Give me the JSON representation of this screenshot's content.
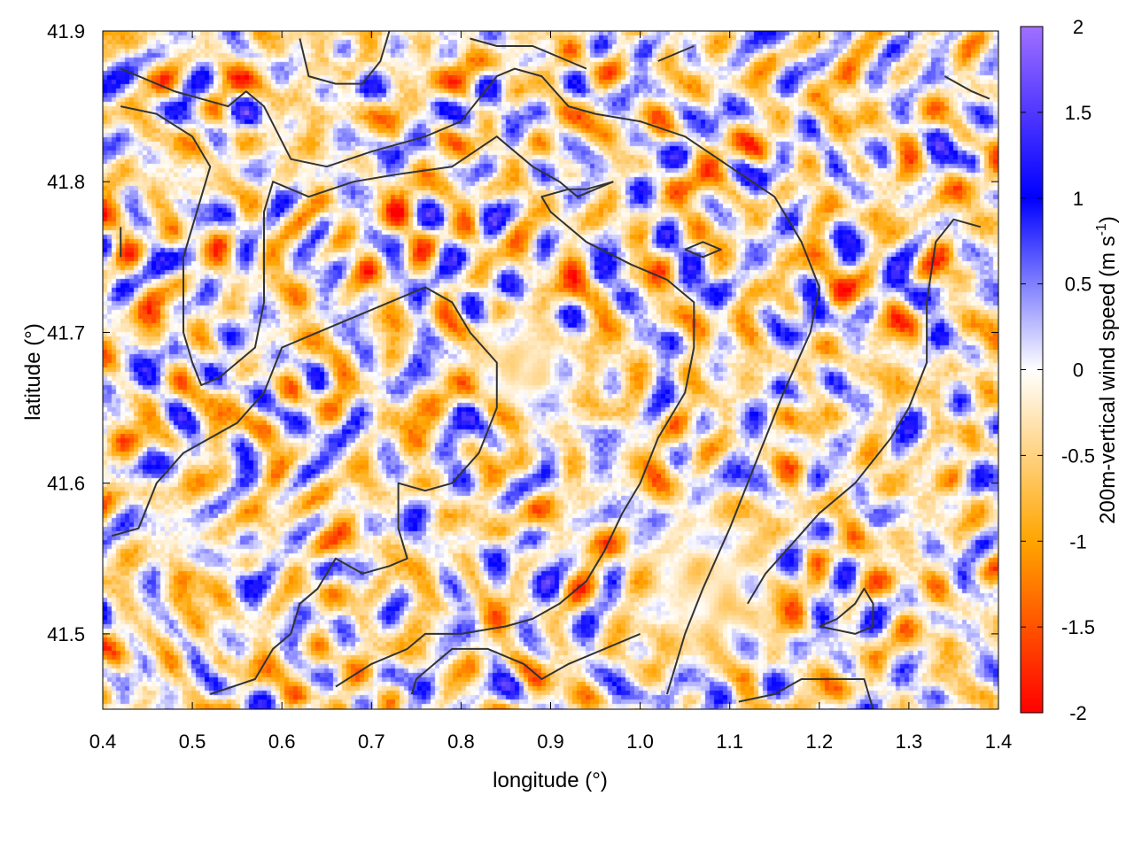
{
  "chart_data": {
    "type": "heatmap",
    "title": "",
    "xlabel": "longitude (°)",
    "ylabel": "latitude (°)",
    "colorbar_label": "200m-vertical wind speed (m s-1)",
    "colorbar_label_parts": [
      "200m-vertical wind speed (m s",
      "-1",
      ")"
    ],
    "xlim": [
      0.4,
      1.4
    ],
    "ylim": [
      41.45,
      41.9
    ],
    "x_ticks": [
      0.4,
      0.5,
      0.6,
      0.7,
      0.8,
      0.9,
      1.0,
      1.1,
      1.2,
      1.3,
      1.4
    ],
    "x_tick_labels": [
      "0.4",
      "0.5",
      "0.6",
      "0.7",
      "0.8",
      "0.9",
      "1.0",
      "1.1",
      "1.2",
      "1.3",
      "1.4"
    ],
    "y_ticks": [
      41.5,
      41.6,
      41.7,
      41.8,
      41.9
    ],
    "y_tick_labels": [
      "41.5",
      "41.6",
      "41.7",
      "41.8",
      "41.9"
    ],
    "colorbar_range": [
      -2,
      2
    ],
    "colorbar_ticks": [
      2,
      1.5,
      1,
      0.5,
      0,
      -0.5,
      -1,
      -1.5,
      -2
    ],
    "colorbar_tick_labels": [
      "2",
      "1.5",
      "1",
      "0.5",
      "0",
      "-0.5",
      "-1",
      "-1.5",
      "-2"
    ],
    "colormap": [
      {
        "value": -2,
        "color": "#ff0000"
      },
      {
        "value": -1,
        "color": "#ffa500"
      },
      {
        "value": 0,
        "color": "#ffffff"
      },
      {
        "value": 1,
        "color": "#0000ff"
      },
      {
        "value": 2,
        "color": "#a070ff"
      }
    ],
    "grid": false,
    "contour_color": "#333333",
    "contours": [
      [
        [
          0.42,
          41.875
        ],
        [
          0.48,
          41.86
        ],
        [
          0.54,
          41.85
        ],
        [
          0.56,
          41.86
        ],
        [
          0.58,
          41.85
        ],
        [
          0.61,
          41.815
        ],
        [
          0.65,
          41.81
        ],
        [
          0.7,
          41.82
        ],
        [
          0.76,
          41.83
        ],
        [
          0.8,
          41.84
        ],
        [
          0.84,
          41.87
        ],
        [
          0.86,
          41.875
        ],
        [
          0.89,
          41.87
        ],
        [
          0.92,
          41.85
        ],
        [
          0.95,
          41.845
        ],
        [
          1.0,
          41.84
        ],
        [
          1.05,
          41.83
        ],
        [
          1.1,
          41.81
        ],
        [
          1.15,
          41.79
        ],
        [
          1.18,
          41.76
        ],
        [
          1.2,
          41.73
        ],
        [
          1.19,
          41.7
        ],
        [
          1.16,
          41.66
        ],
        [
          1.14,
          41.63
        ],
        [
          1.12,
          41.6
        ],
        [
          1.1,
          41.57
        ],
        [
          1.07,
          41.53
        ],
        [
          1.05,
          41.5
        ],
        [
          1.03,
          41.46
        ]
      ],
      [
        [
          0.42,
          41.85
        ],
        [
          0.46,
          41.845
        ],
        [
          0.5,
          41.83
        ],
        [
          0.52,
          41.81
        ],
        [
          0.51,
          41.79
        ],
        [
          0.5,
          41.77
        ],
        [
          0.49,
          41.75
        ],
        [
          0.49,
          41.72
        ],
        [
          0.49,
          41.7
        ],
        [
          0.5,
          41.68
        ],
        [
          0.51,
          41.665
        ],
        [
          0.53,
          41.67
        ],
        [
          0.55,
          41.68
        ],
        [
          0.57,
          41.69
        ],
        [
          0.58,
          41.72
        ],
        [
          0.58,
          41.75
        ],
        [
          0.58,
          41.78
        ],
        [
          0.59,
          41.8
        ],
        [
          0.63,
          41.79
        ],
        [
          0.68,
          41.8
        ],
        [
          0.73,
          41.805
        ],
        [
          0.79,
          41.81
        ],
        [
          0.84,
          41.83
        ],
        [
          0.88,
          41.81
        ],
        [
          0.91,
          41.8
        ],
        [
          0.93,
          41.79
        ],
        [
          0.95,
          41.795
        ],
        [
          0.97,
          41.8
        ]
      ],
      [
        [
          0.97,
          41.8
        ],
        [
          0.94,
          41.795
        ],
        [
          0.92,
          41.795
        ],
        [
          0.89,
          41.79
        ],
        [
          0.9,
          41.78
        ],
        [
          0.94,
          41.76
        ],
        [
          0.99,
          41.745
        ],
        [
          1.03,
          41.735
        ],
        [
          1.06,
          41.72
        ],
        [
          1.06,
          41.69
        ],
        [
          1.05,
          41.66
        ],
        [
          1.02,
          41.63
        ],
        [
          1.0,
          41.6
        ],
        [
          0.98,
          41.58
        ],
        [
          0.96,
          41.555
        ],
        [
          0.94,
          41.535
        ],
        [
          0.91,
          41.52
        ],
        [
          0.88,
          41.51
        ],
        [
          0.85,
          41.505
        ],
        [
          0.8,
          41.5
        ],
        [
          0.76,
          41.5
        ],
        [
          0.74,
          41.49
        ],
        [
          0.7,
          41.48
        ],
        [
          0.66,
          41.465
        ]
      ],
      [
        [
          0.41,
          41.565
        ],
        [
          0.44,
          41.57
        ],
        [
          0.46,
          41.6
        ],
        [
          0.49,
          41.62
        ],
        [
          0.52,
          41.63
        ],
        [
          0.55,
          41.64
        ],
        [
          0.58,
          41.66
        ],
        [
          0.6,
          41.69
        ],
        [
          0.64,
          41.7
        ],
        [
          0.7,
          41.715
        ],
        [
          0.76,
          41.73
        ],
        [
          0.79,
          41.72
        ],
        [
          0.81,
          41.7
        ],
        [
          0.84,
          41.68
        ],
        [
          0.84,
          41.65
        ],
        [
          0.82,
          41.62
        ],
        [
          0.79,
          41.6
        ],
        [
          0.76,
          41.595
        ],
        [
          0.73,
          41.6
        ],
        [
          0.73,
          41.57
        ],
        [
          0.74,
          41.55
        ],
        [
          0.72,
          41.545
        ],
        [
          0.69,
          41.54
        ],
        [
          0.66,
          41.55
        ],
        [
          0.64,
          41.53
        ],
        [
          0.62,
          41.52
        ],
        [
          0.61,
          41.5
        ],
        [
          0.59,
          41.49
        ],
        [
          0.57,
          41.47
        ],
        [
          0.52,
          41.46
        ]
      ],
      [
        [
          1.38,
          41.77
        ],
        [
          1.35,
          41.775
        ],
        [
          1.33,
          41.76
        ],
        [
          1.32,
          41.72
        ],
        [
          1.32,
          41.68
        ],
        [
          1.3,
          41.65
        ],
        [
          1.28,
          41.63
        ],
        [
          1.24,
          41.6
        ],
        [
          1.2,
          41.58
        ],
        [
          1.17,
          41.56
        ],
        [
          1.14,
          41.54
        ],
        [
          1.12,
          41.52
        ]
      ],
      [
        [
          0.745,
          41.46
        ],
        [
          0.75,
          41.47
        ],
        [
          0.77,
          41.48
        ],
        [
          0.79,
          41.49
        ],
        [
          0.83,
          41.49
        ],
        [
          0.87,
          41.48
        ],
        [
          0.89,
          41.47
        ],
        [
          0.92,
          41.48
        ],
        [
          0.96,
          41.49
        ],
        [
          1.0,
          41.5
        ]
      ],
      [
        [
          1.11,
          41.455
        ],
        [
          1.15,
          41.46
        ],
        [
          1.18,
          41.47
        ],
        [
          1.22,
          41.47
        ],
        [
          1.25,
          41.47
        ],
        [
          1.26,
          41.45
        ]
      ],
      [
        [
          1.2,
          41.505
        ],
        [
          1.22,
          41.51
        ],
        [
          1.24,
          41.52
        ],
        [
          1.25,
          41.53
        ],
        [
          1.26,
          41.52
        ],
        [
          1.26,
          41.505
        ],
        [
          1.24,
          41.5
        ],
        [
          1.2,
          41.505
        ]
      ],
      [
        [
          0.62,
          41.895
        ],
        [
          0.63,
          41.87
        ],
        [
          0.66,
          41.865
        ],
        [
          0.69,
          41.865
        ],
        [
          0.71,
          41.88
        ],
        [
          0.72,
          41.9
        ]
      ],
      [
        [
          0.81,
          41.895
        ],
        [
          0.84,
          41.89
        ],
        [
          0.88,
          41.89
        ],
        [
          0.92,
          41.88
        ],
        [
          0.94,
          41.875
        ]
      ],
      [
        [
          1.34,
          41.87
        ],
        [
          1.37,
          41.86
        ],
        [
          1.39,
          41.855
        ]
      ],
      [
        [
          1.02,
          41.88
        ],
        [
          1.04,
          41.885
        ],
        [
          1.06,
          41.89
        ]
      ],
      [
        [
          1.05,
          41.755
        ],
        [
          1.07,
          41.76
        ],
        [
          1.09,
          41.755
        ],
        [
          1.07,
          41.75
        ],
        [
          1.05,
          41.755
        ]
      ],
      [
        [
          0.42,
          41.77
        ],
        [
          0.42,
          41.75
        ]
      ]
    ]
  }
}
